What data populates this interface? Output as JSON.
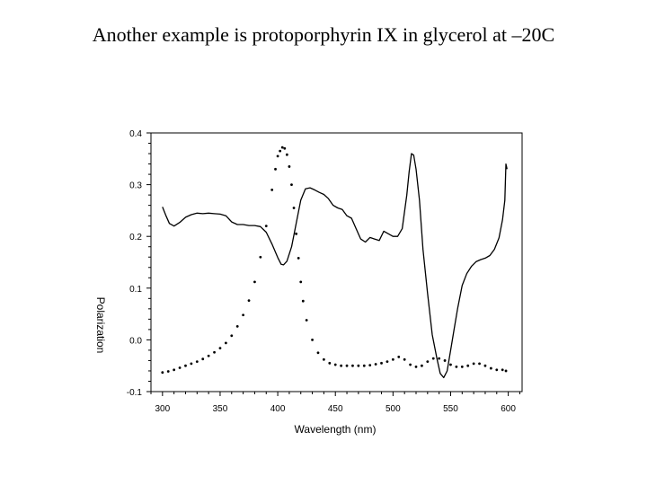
{
  "slide": {
    "title": "Another example is protoporphyrin IX in glycerol at –20C"
  },
  "chart_data": {
    "type": "line",
    "title": "",
    "xlabel": "Wavelength (nm)",
    "ylabel": "Polarization",
    "xlim": [
      290,
      612
    ],
    "ylim": [
      -0.1,
      0.4
    ],
    "xticks": [
      300,
      350,
      400,
      450,
      500,
      550,
      600
    ],
    "xtick_labels": [
      "300",
      "350",
      "400",
      "450",
      "500",
      "550",
      "600"
    ],
    "yticks": [
      0.4,
      0.3,
      0.2,
      0.1,
      0.0,
      -0.1
    ],
    "ytick_labels": [
      "0.4",
      "0.3",
      "0.2",
      "0.1",
      "0.0",
      "-0.1"
    ],
    "grid": false,
    "legend": "none",
    "series": [
      {
        "style": "solid",
        "x": [
          300,
          303,
          306,
          310,
          315,
          320,
          325,
          330,
          335,
          340,
          345,
          350,
          355,
          360,
          365,
          370,
          375,
          380,
          385,
          390,
          395,
          400,
          403,
          405,
          408,
          412,
          416,
          420,
          424,
          428,
          432,
          436,
          440,
          444,
          448,
          452,
          456,
          460,
          464,
          468,
          472,
          476,
          480,
          484,
          488,
          492,
          496,
          500,
          504,
          508,
          512,
          514,
          516,
          518,
          520,
          523,
          526,
          530,
          534,
          538,
          541,
          544,
          547,
          550,
          553,
          556,
          560,
          564,
          568,
          572,
          576,
          580,
          584,
          588,
          592,
          595,
          597,
          598,
          599
        ],
        "y": [
          0.257,
          0.24,
          0.225,
          0.22,
          0.227,
          0.237,
          0.242,
          0.245,
          0.244,
          0.245,
          0.244,
          0.243,
          0.24,
          0.228,
          0.223,
          0.223,
          0.221,
          0.221,
          0.219,
          0.208,
          0.185,
          0.159,
          0.146,
          0.145,
          0.152,
          0.18,
          0.225,
          0.27,
          0.292,
          0.294,
          0.29,
          0.285,
          0.281,
          0.273,
          0.26,
          0.255,
          0.252,
          0.24,
          0.235,
          0.215,
          0.195,
          0.189,
          0.198,
          0.195,
          0.192,
          0.21,
          0.205,
          0.2,
          0.2,
          0.215,
          0.28,
          0.325,
          0.36,
          0.357,
          0.33,
          0.27,
          0.175,
          0.09,
          0.01,
          -0.035,
          -0.065,
          -0.073,
          -0.06,
          -0.02,
          0.02,
          0.06,
          0.105,
          0.128,
          0.142,
          0.151,
          0.155,
          0.158,
          0.163,
          0.175,
          0.197,
          0.232,
          0.27,
          0.34,
          0.33
        ]
      },
      {
        "style": "dotted",
        "x": [
          300,
          305,
          310,
          315,
          320,
          325,
          330,
          335,
          340,
          345,
          350,
          355,
          360,
          365,
          370,
          375,
          380,
          385,
          390,
          395,
          398,
          400,
          402,
          404,
          406,
          408,
          410,
          412,
          414,
          416,
          418,
          420,
          422,
          425,
          430,
          435,
          440,
          445,
          450,
          455,
          460,
          465,
          470,
          475,
          480,
          485,
          490,
          495,
          500,
          505,
          510,
          515,
          520,
          525,
          530,
          535,
          540,
          545,
          550,
          555,
          560,
          565,
          570,
          575,
          580,
          585,
          590,
          595,
          598
        ],
        "y": [
          -0.063,
          -0.061,
          -0.058,
          -0.054,
          -0.05,
          -0.046,
          -0.042,
          -0.037,
          -0.031,
          -0.024,
          -0.016,
          -0.006,
          0.008,
          0.026,
          0.048,
          0.076,
          0.112,
          0.16,
          0.22,
          0.29,
          0.33,
          0.355,
          0.365,
          0.372,
          0.37,
          0.358,
          0.335,
          0.3,
          0.255,
          0.205,
          0.158,
          0.112,
          0.075,
          0.038,
          0.0,
          -0.025,
          -0.038,
          -0.045,
          -0.048,
          -0.05,
          -0.05,
          -0.05,
          -0.05,
          -0.05,
          -0.049,
          -0.047,
          -0.045,
          -0.042,
          -0.038,
          -0.033,
          -0.038,
          -0.048,
          -0.052,
          -0.05,
          -0.042,
          -0.036,
          -0.036,
          -0.04,
          -0.048,
          -0.052,
          -0.052,
          -0.05,
          -0.046,
          -0.046,
          -0.05,
          -0.055,
          -0.058,
          -0.058,
          -0.06
        ]
      }
    ]
  }
}
